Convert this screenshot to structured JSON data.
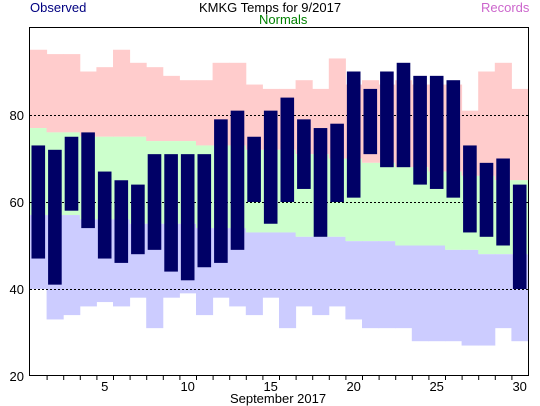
{
  "header": {
    "title": "KMKG Temps for 9/2017",
    "observed_label": "Observed",
    "normals_label": "Normals",
    "records_label": "Records"
  },
  "chart_data": {
    "type": "bar",
    "title": "KMKG Temps for 9/2017",
    "xlabel": "September 2017",
    "ylabel": "",
    "ylim": [
      20,
      100
    ],
    "y_ticks": [
      20,
      40,
      60,
      80
    ],
    "dashed_gridlines": [
      40,
      60,
      80
    ],
    "x_ticks_labeled": [
      5,
      10,
      15,
      20,
      25,
      30
    ],
    "days": [
      1,
      2,
      3,
      4,
      5,
      6,
      7,
      8,
      9,
      10,
      11,
      12,
      13,
      14,
      15,
      16,
      17,
      18,
      19,
      20,
      21,
      22,
      23,
      24,
      25,
      26,
      27,
      28,
      29,
      30
    ],
    "colors": {
      "observed": "#000066",
      "normal": "#ccffcc",
      "record": "#ffcccc",
      "record_low_band": "#ccccff",
      "observed_label": "#000080",
      "normals_label": "#008000",
      "records_label": "#cc66cc"
    },
    "series": [
      {
        "name": "Observed",
        "high": [
          73,
          72,
          75,
          76,
          67,
          65,
          64,
          71,
          71,
          71,
          71,
          79,
          81,
          75,
          81,
          84,
          79,
          77,
          78,
          90,
          86,
          90,
          92,
          89,
          89,
          88,
          73,
          69,
          70,
          64
        ],
        "low": [
          47,
          41,
          58,
          54,
          47,
          46,
          48,
          49,
          44,
          42,
          45,
          46,
          49,
          60,
          55,
          60,
          63,
          52,
          60,
          61,
          71,
          68,
          68,
          64,
          63,
          61,
          53,
          52,
          50,
          40
        ]
      },
      {
        "name": "Normals",
        "high": [
          77,
          76,
          76,
          75,
          75,
          75,
          75,
          74,
          74,
          74,
          73,
          73,
          73,
          72,
          72,
          72,
          71,
          71,
          70,
          70,
          69,
          69,
          68,
          68,
          67,
          67,
          66,
          66,
          65,
          65
        ],
        "low": [
          57,
          57,
          57,
          56,
          56,
          56,
          55,
          55,
          55,
          55,
          54,
          54,
          54,
          53,
          53,
          53,
          52,
          52,
          52,
          51,
          51,
          51,
          50,
          50,
          50,
          49,
          49,
          48,
          48,
          48
        ]
      },
      {
        "name": "Records",
        "high": [
          95,
          94,
          94,
          90,
          91,
          95,
          92,
          91,
          89,
          88,
          88,
          92,
          92,
          87,
          86,
          86,
          88,
          86,
          93,
          87,
          88,
          87,
          88,
          87,
          87,
          87,
          81,
          90,
          92,
          86
        ],
        "low": [
          40,
          33,
          34,
          36,
          37,
          36,
          38,
          31,
          38,
          39,
          34,
          38,
          36,
          34,
          38,
          31,
          36,
          34,
          36,
          33,
          31,
          31,
          31,
          28,
          28,
          28,
          27,
          27,
          31,
          28
        ]
      }
    ]
  }
}
